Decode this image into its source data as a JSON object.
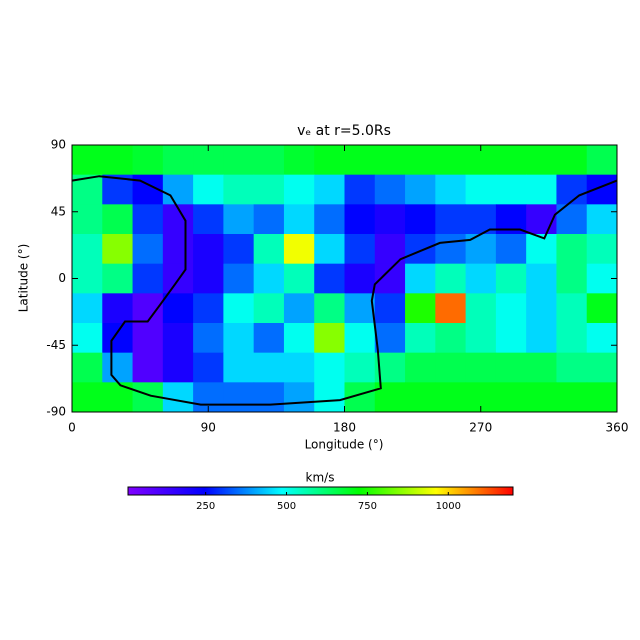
{
  "chart_data": {
    "type": "heatmap",
    "title": "vₑ at r=5.0Rs",
    "x_label": "Longitude (°)",
    "y_label": "Latitude (°)",
    "colorbar_label": "km/s",
    "x": [
      10,
      30,
      50,
      70,
      90,
      110,
      130,
      150,
      170,
      190,
      210,
      230,
      250,
      270,
      290,
      310,
      330,
      350
    ],
    "y": [
      80,
      60,
      40,
      20,
      0,
      -20,
      -40,
      -60,
      -80
    ],
    "values": [
      [
        700,
        700,
        680,
        650,
        650,
        650,
        650,
        680,
        700,
        700,
        700,
        700,
        700,
        700,
        700,
        700,
        700,
        650
      ],
      [
        600,
        300,
        250,
        400,
        500,
        550,
        550,
        500,
        450,
        300,
        350,
        400,
        450,
        500,
        500,
        500,
        300,
        250
      ],
      [
        600,
        650,
        300,
        150,
        300,
        400,
        350,
        450,
        350,
        250,
        200,
        250,
        300,
        300,
        250,
        150,
        350,
        450
      ],
      [
        550,
        850,
        350,
        150,
        200,
        300,
        550,
        950,
        450,
        300,
        150,
        300,
        350,
        400,
        350,
        500,
        600,
        550
      ],
      [
        550,
        600,
        300,
        150,
        200,
        350,
        450,
        550,
        300,
        200,
        150,
        450,
        550,
        450,
        550,
        450,
        600,
        500
      ],
      [
        450,
        200,
        100,
        250,
        300,
        500,
        550,
        400,
        600,
        400,
        300,
        750,
        1100,
        550,
        500,
        450,
        550,
        700
      ],
      [
        500,
        250,
        100,
        200,
        350,
        450,
        350,
        500,
        850,
        500,
        350,
        550,
        600,
        550,
        500,
        450,
        550,
        500
      ],
      [
        650,
        400,
        100,
        200,
        300,
        450,
        450,
        450,
        500,
        550,
        600,
        650,
        650,
        650,
        650,
        650,
        600,
        600
      ],
      [
        700,
        700,
        650,
        450,
        350,
        350,
        350,
        400,
        500,
        650,
        700,
        700,
        700,
        700,
        700,
        700,
        700,
        700
      ]
    ],
    "xlim": [
      0,
      360
    ],
    "ylim": [
      -90,
      90
    ],
    "xticks": [
      0,
      90,
      180,
      270,
      360
    ],
    "yticks": [
      90,
      45,
      0,
      -45,
      -90
    ],
    "zlim": [
      10,
      1200
    ],
    "zticks": [
      250,
      500,
      750,
      1000
    ],
    "colormap": [
      "#8000ff",
      "#0000ff",
      "#00ffff",
      "#00ff00",
      "#ffff00",
      "#ff0000"
    ],
    "lines": [
      {
        "color": "#000000",
        "x": [
          0,
          18,
          45,
          65,
          75,
          75,
          68,
          58,
          50,
          35,
          26,
          26,
          32,
          52,
          85,
          131,
          177,
          204,
          202,
          198,
          200,
          217,
          243,
          263,
          276,
          296,
          312,
          319,
          335,
          360
        ],
        "y": [
          66,
          69,
          66,
          56,
          39,
          6,
          -4,
          -18,
          -29,
          -29,
          -42,
          -65,
          -72,
          -79,
          -85,
          -85,
          -82,
          -74,
          -48,
          -15,
          -4,
          13,
          24,
          26,
          33,
          33,
          27,
          43,
          56,
          66
        ]
      }
    ]
  }
}
